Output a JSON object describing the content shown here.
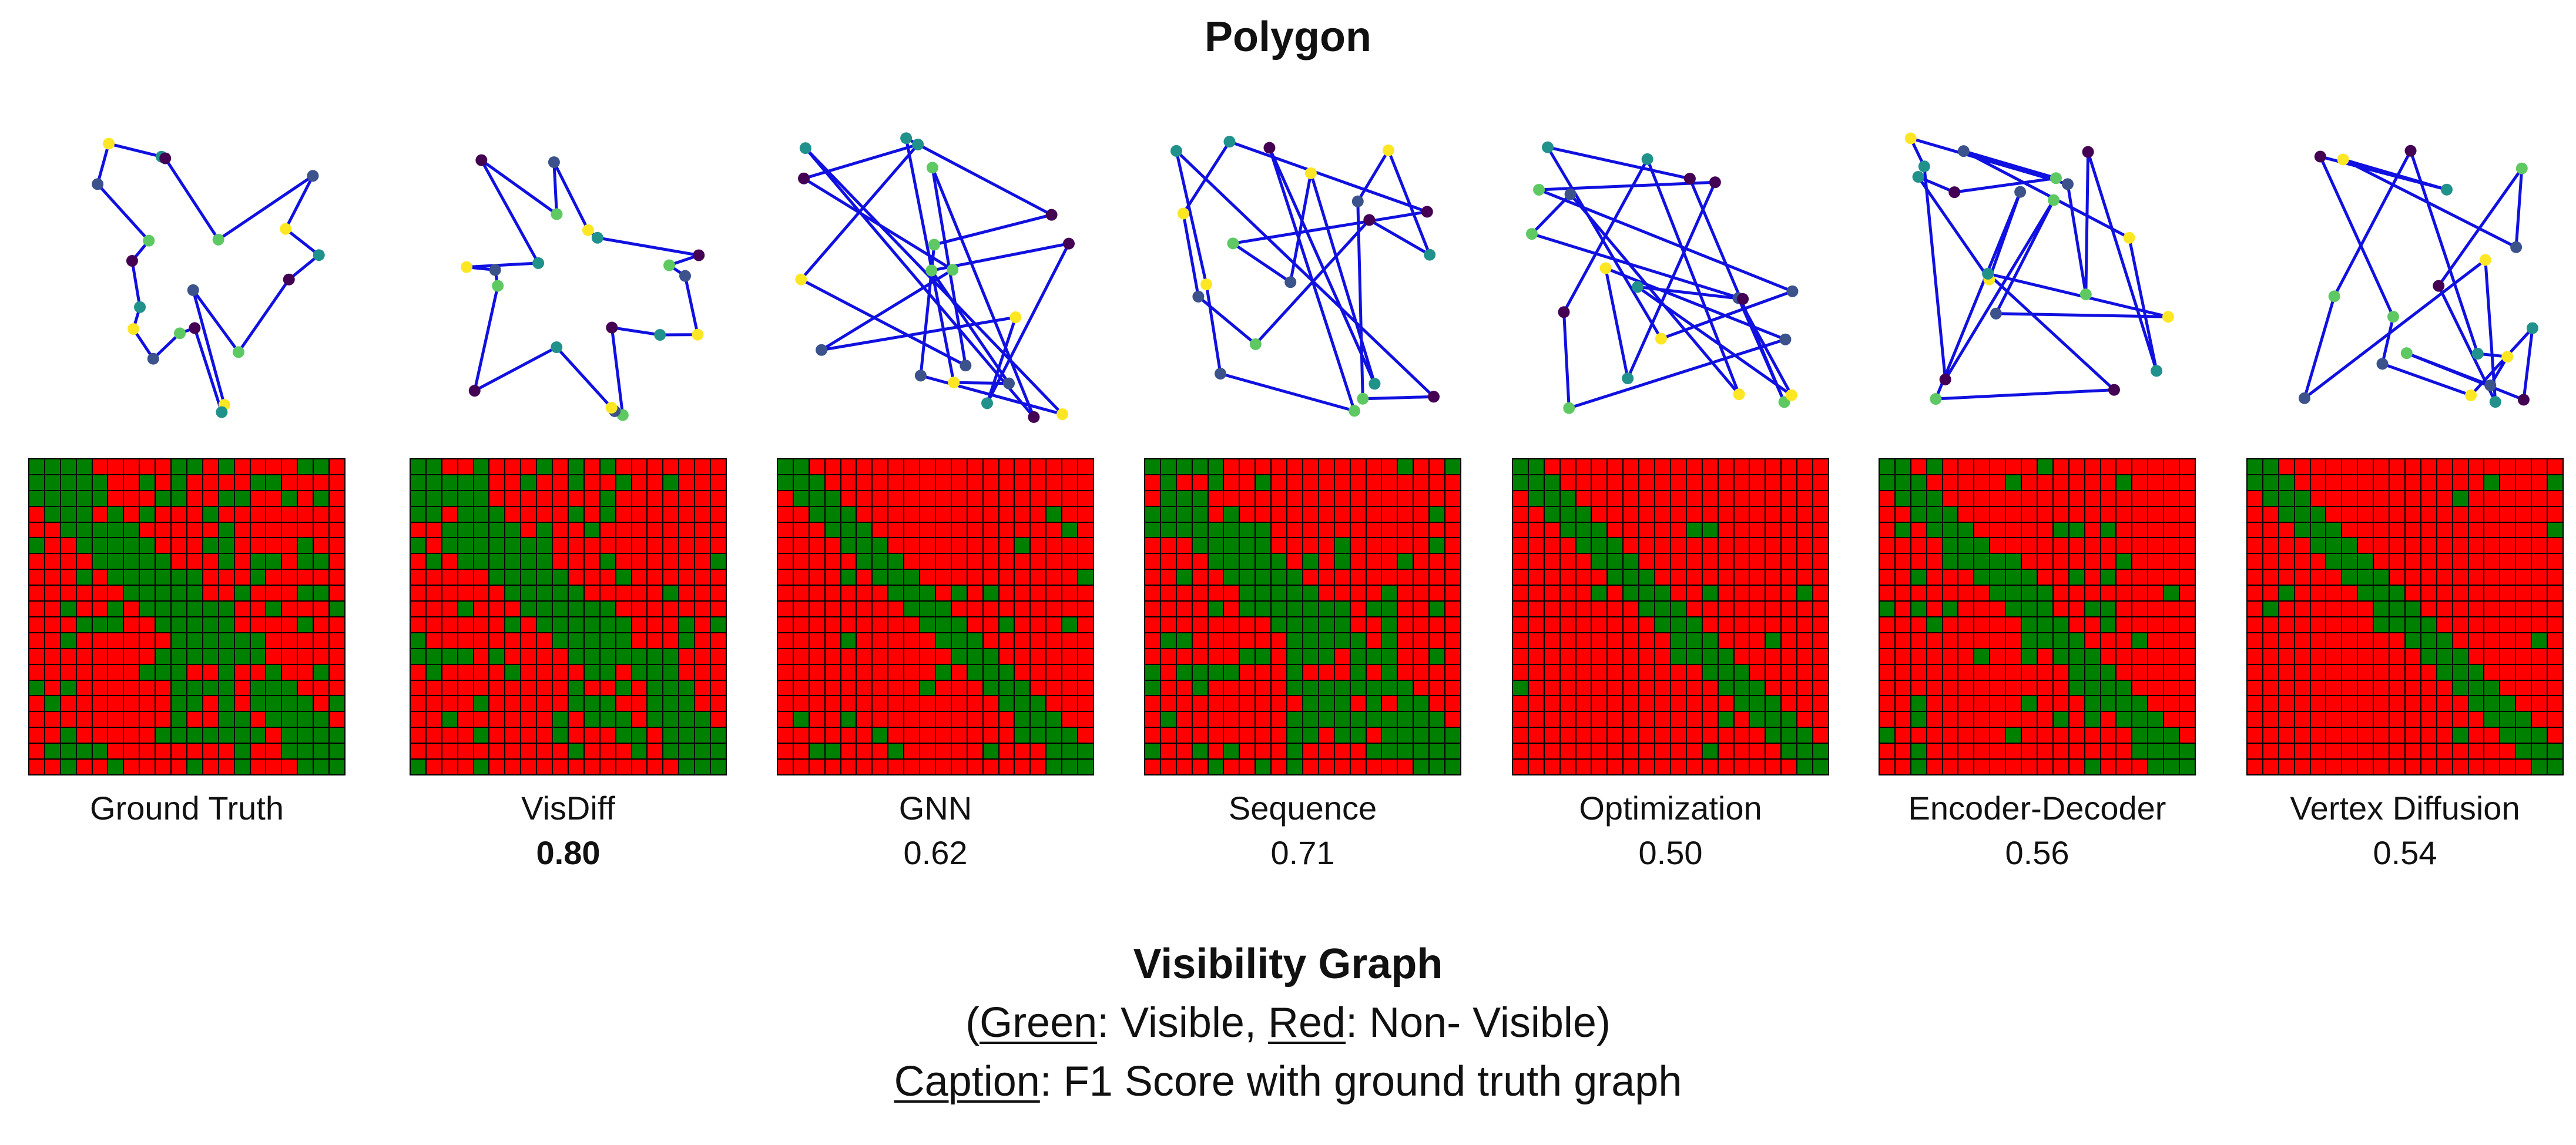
{
  "title": "Polygon",
  "methods": [
    {
      "name": "Ground Truth",
      "score": ""
    },
    {
      "name": "VisDiff",
      "score": "0.80",
      "best": true
    },
    {
      "name": "GNN",
      "score": "0.62"
    },
    {
      "name": "Sequence",
      "score": "0.71"
    },
    {
      "name": "Optimization",
      "score": "0.50"
    },
    {
      "name": "Encoder-Decoder",
      "score": "0.56"
    },
    {
      "name": "Vertex Diffusion",
      "score": "0.54"
    }
  ],
  "colors": {
    "visible": "#008000",
    "non_visible": "#ff0000",
    "edge": "#1010e0",
    "vertex_palette": [
      "#440154",
      "#3b528b",
      "#21918c",
      "#5ec962",
      "#fde725"
    ]
  },
  "footer": {
    "heading": "Visibility Graph",
    "legend_open": "(",
    "legend_green": "Green",
    "legend_green_rest": ": Visible, ",
    "legend_red": "Red",
    "legend_red_rest": ": Non- Visible)",
    "caption_word": "Caption",
    "caption_rest": ": F1 Score with ground truth graph"
  }
}
